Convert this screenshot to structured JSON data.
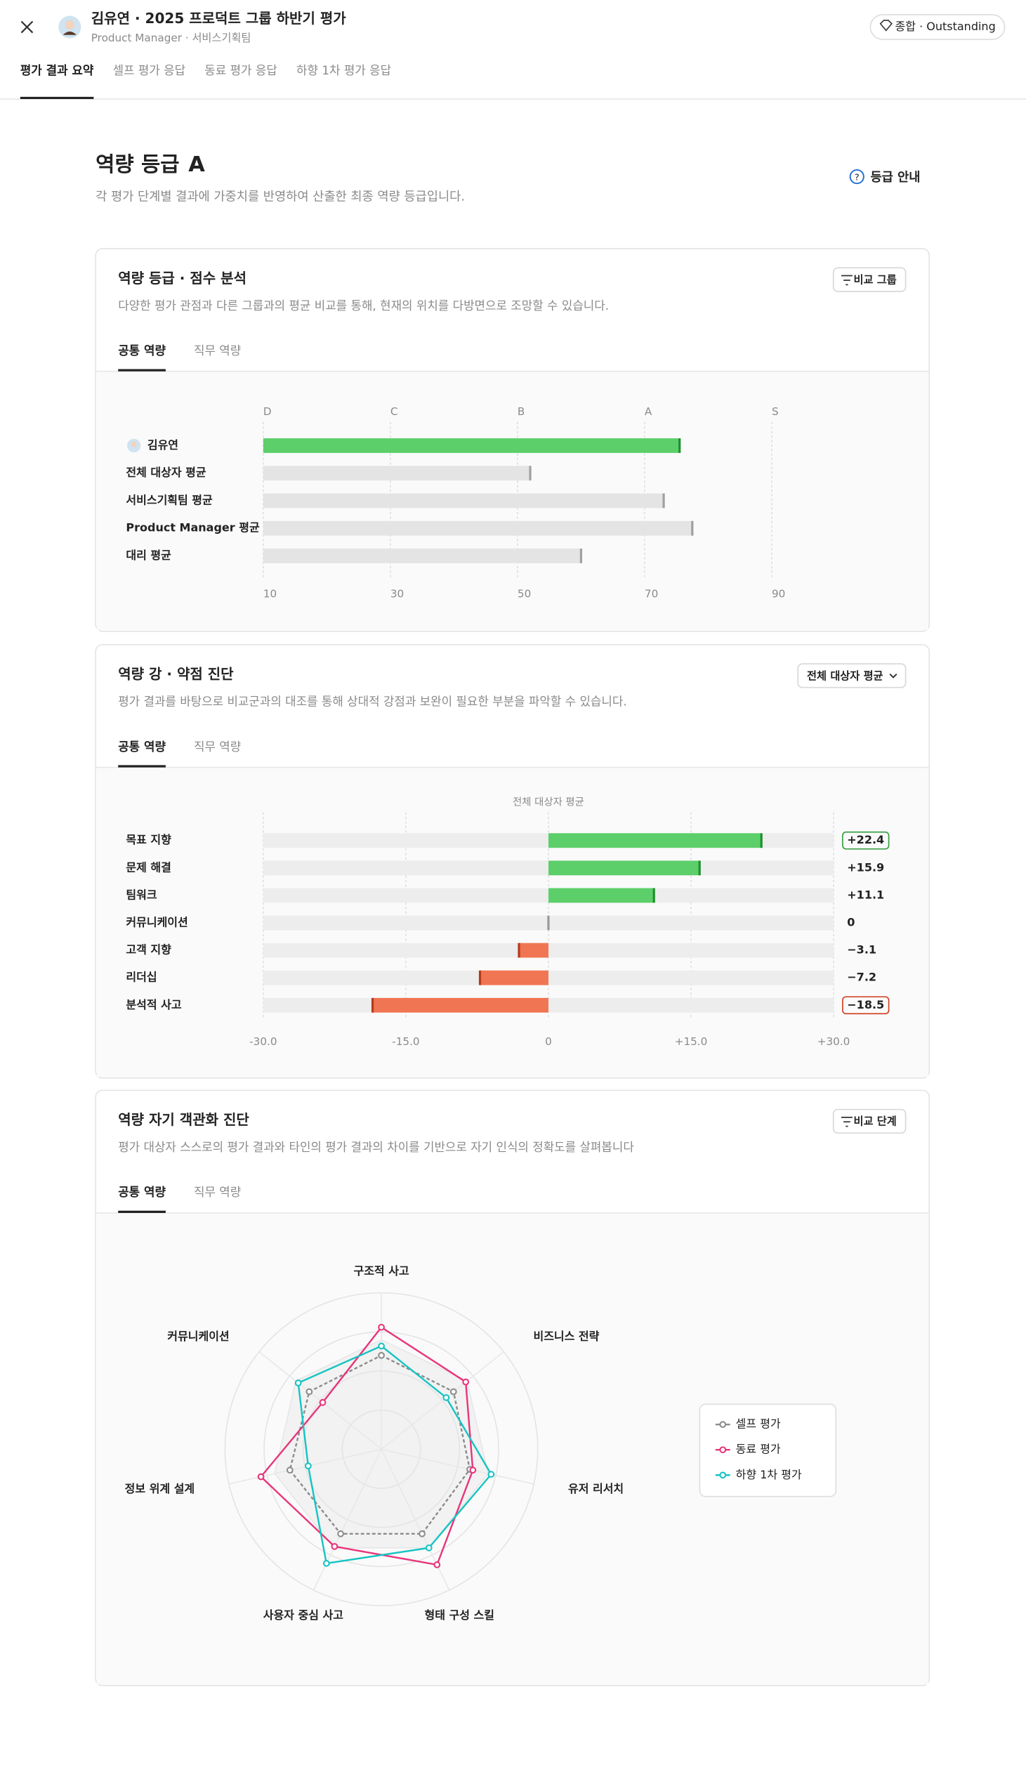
{
  "header": {
    "title": "김유연 · 2025 프로덕트 그룹 하반기 평가",
    "subtitle": "Product Manager · 서비스기획팀",
    "badge": "종합 · Outstanding",
    "tabs": [
      "평가 결과 요약",
      "셀프 평가 응답",
      "동료 평가 응답",
      "하향 1차 평가 응답"
    ]
  },
  "grade": {
    "title": "역량 등급",
    "value": "A",
    "description": "각 평가 단계별 결과에 가중치를 반영하여 산출한 최종 역량 등급입니다.",
    "link": "등급 안내"
  },
  "chart_data": [
    {
      "type": "hbar",
      "title": "역량 등급 · 점수 분석",
      "subtitle": "다양한 평가 관점과 다른 그룹과의 평균 비교를 통해, 현재의 위치를 다방면으로 조망할 수 있습니다.",
      "button": "비교 그룹",
      "tabs": [
        "공통 역량",
        "직무 역량"
      ],
      "categories": [
        "김유연",
        "전체 대상자 평균",
        "서비스기획팀 평균",
        "Product Manager 평균",
        "대리 평균"
      ],
      "values": [
        75.5,
        52,
        73,
        77.5,
        60
      ],
      "colors": [
        "#5ccf6a",
        "#e4e4e4",
        "#e4e4e4",
        "#e4e4e4",
        "#e4e4e4"
      ],
      "xlim": [
        10,
        90
      ],
      "xticks": [
        10,
        30,
        50,
        70,
        90
      ],
      "grade_ticks": [
        {
          "value": 10,
          "label": "D"
        },
        {
          "value": 30,
          "label": "C"
        },
        {
          "value": 50,
          "label": "B"
        },
        {
          "value": 70,
          "label": "A"
        },
        {
          "value": 90,
          "label": "S"
        }
      ],
      "grid": true
    },
    {
      "type": "diverging",
      "title": "역량 강 · 약점 진단",
      "subtitle": "평가 결과를 바탕으로 비교군과의 대조를 통해 상대적 강점과 보완이 필요한 부분을 파악할 수 있습니다.",
      "button": "전체 대상자 평균",
      "tabs": [
        "공통 역량",
        "직무 역량"
      ],
      "reference_label": "전체 대상자 평균",
      "categories": [
        "목표 지향",
        "문제 해결",
        "팀워크",
        "커뮤니케이션",
        "고객 지향",
        "리더십",
        "분석적 사고"
      ],
      "values": [
        22.4,
        15.9,
        11.1,
        0,
        -3.1,
        -7.2,
        -18.5
      ],
      "value_labels": [
        "+22.4",
        "+15.9",
        "+11.1",
        "0",
        "−3.1",
        "−7.2",
        "−18.5"
      ],
      "positive_color": "#5ccf6a",
      "negative_color": "#f07552",
      "xlim": [
        -30,
        30
      ],
      "xticks": [
        {
          "value": -30,
          "label": "-30.0"
        },
        {
          "value": -15,
          "label": "-15.0"
        },
        0,
        {
          "value": 15,
          "label": "+15.0"
        },
        {
          "value": 30,
          "label": "+30.0"
        }
      ],
      "grid": true
    },
    {
      "type": "radar",
      "title": "역량 자기 객관화 진단",
      "subtitle": "평가 대상자 스스로의 평가 결과와 타인의 평가 결과의 차이를 기반으로 자기 인식의 정확도를 살펴봅니다",
      "button": "비교 단계",
      "tabs": [
        "공통 역량",
        "직무 역량"
      ],
      "axes": [
        "구조적 사고",
        "비즈니스 전략",
        "유저 리서치",
        "형태 구성 스킬",
        "사용자 중심 사고",
        "정보 위계 설계",
        "커뮤니케이션"
      ],
      "rlim": [
        0,
        100
      ],
      "rticks": [
        25,
        50,
        75,
        100
      ],
      "legend": "right",
      "series": [
        {
          "name": "셀프 평가",
          "color": "#8c8c8c",
          "values": [
            60,
            59,
            58,
            60,
            60,
            60,
            59
          ]
        },
        {
          "name": "동료 평가",
          "color": "#e8357a",
          "values": [
            78,
            69,
            60,
            82,
            69,
            79,
            48
          ]
        },
        {
          "name": "하향 1차 평가",
          "color": "#17c3c3",
          "values": [
            66,
            53,
            72,
            70,
            81,
            48,
            68
          ]
        }
      ]
    }
  ]
}
